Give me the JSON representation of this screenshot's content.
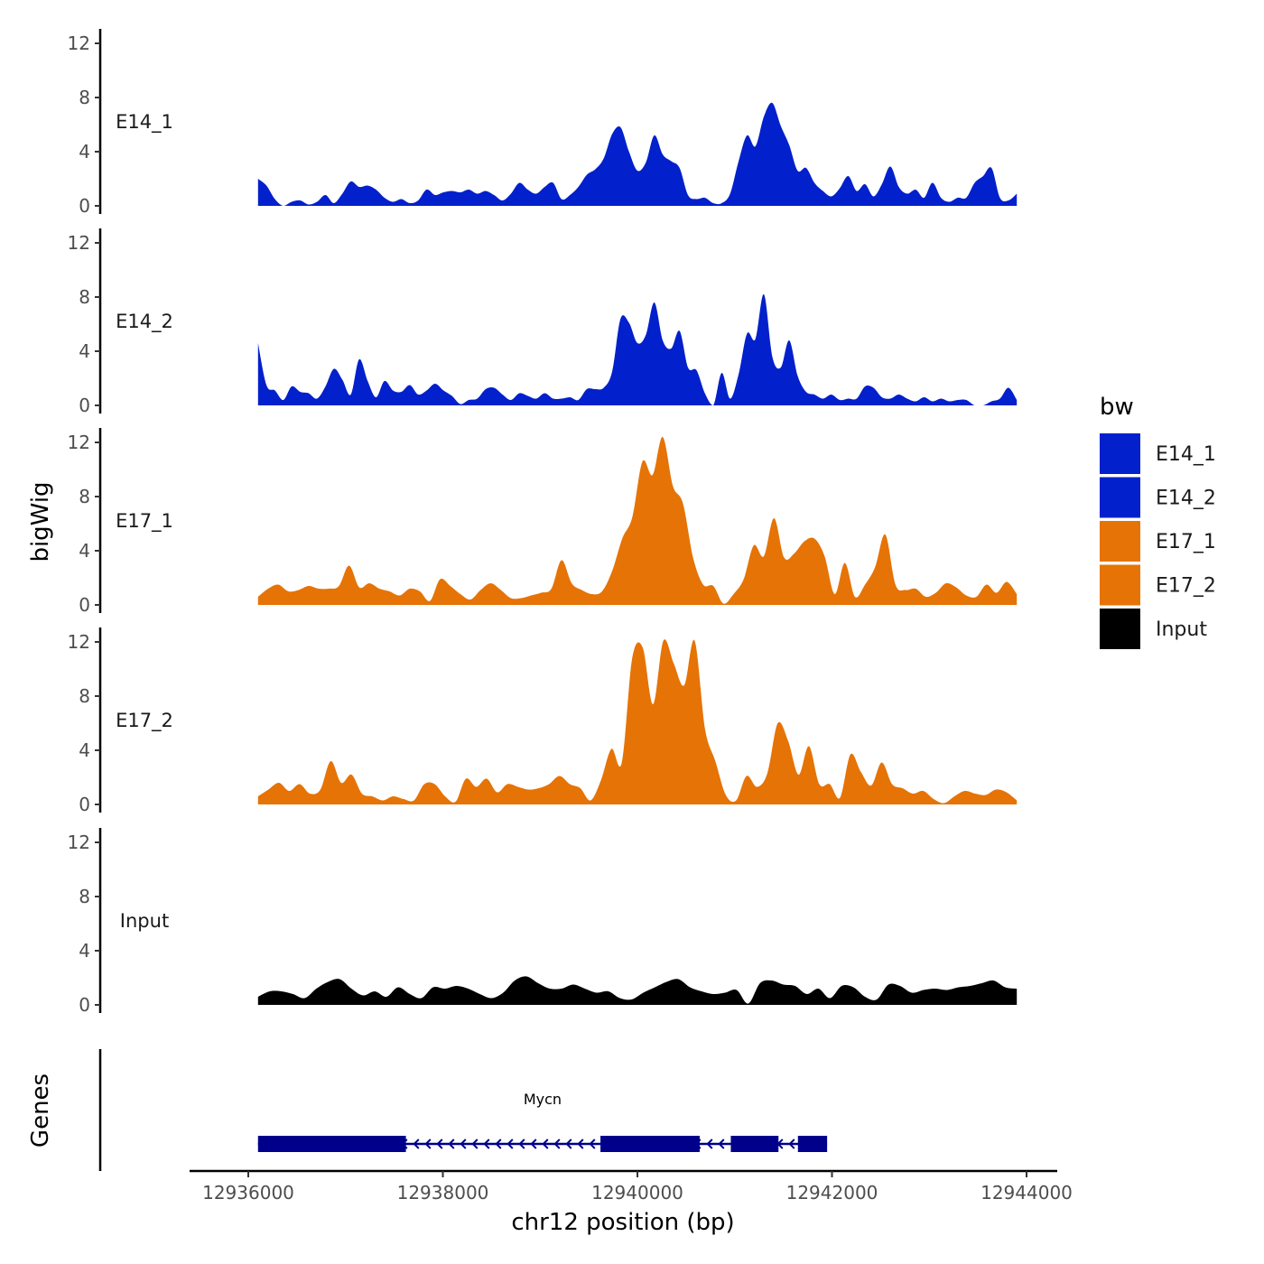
{
  "chart_data": {
    "type": "area",
    "title": "",
    "ylabel": "bigWig",
    "xlabel": "chr12 position (bp)",
    "xlim": [
      12935700,
      12944000
    ],
    "region": [
      12936100,
      12943900
    ],
    "x_ticks": [
      12936000,
      12938000,
      12940000,
      12942000,
      12944000
    ],
    "x_tick_labels": [
      "12936000",
      "12938000",
      "12940000",
      "12942000",
      "12944000"
    ],
    "y_ticks": [
      0,
      4,
      8,
      12
    ],
    "y_tick_labels": [
      "0",
      "4",
      "8",
      "12"
    ],
    "ylim": [
      0,
      13
    ],
    "legend": {
      "title": "bw",
      "position": "right",
      "entries": [
        {
          "label": "E14_1",
          "color": "#0220cc"
        },
        {
          "label": "E14_2",
          "color": "#0220cc"
        },
        {
          "label": "E17_1",
          "color": "#e67305"
        },
        {
          "label": "E17_2",
          "color": "#e67305"
        },
        {
          "label": "Input",
          "color": "#000000"
        }
      ]
    },
    "tracks": [
      {
        "name": "E14_1",
        "color": "#0220cc",
        "values": [
          2,
          1.5,
          0.5,
          0,
          0.3,
          0.4,
          0.1,
          0.3,
          0.8,
          0.2,
          0.9,
          1.8,
          1.4,
          1.5,
          1.2,
          0.6,
          0.3,
          0.5,
          0.2,
          0.4,
          1.2,
          0.8,
          1,
          1.1,
          1,
          1.2,
          0.9,
          1.1,
          0.8,
          0.4,
          0.9,
          1.7,
          1.2,
          0.9,
          1.4,
          1.7,
          0.5,
          0.8,
          1.4,
          2.3,
          2.7,
          3.5,
          5.3,
          5.8,
          4,
          2.6,
          3.2,
          5.2,
          3.8,
          3.3,
          2.8,
          0.8,
          0.5,
          0.6,
          0.2,
          0.2,
          0.9,
          3.3,
          5.2,
          4.4,
          6.6,
          7.6,
          5.9,
          4.5,
          2.6,
          2.8,
          1.7,
          1.1,
          0.7,
          1.3,
          2.2,
          1.1,
          1.6,
          0.7,
          1.6,
          2.9,
          1.4,
          0.9,
          1.2,
          0.6,
          1.7,
          0.6,
          0.3,
          0.6,
          0.6,
          1.7,
          2.2,
          2.8,
          0.6,
          0.4,
          0.9
        ]
      },
      {
        "name": "E14_2",
        "color": "#0220cc",
        "values": [
          4.6,
          1.5,
          1.1,
          0.4,
          1.4,
          1,
          0.9,
          0.5,
          1.4,
          2.7,
          1.9,
          0.8,
          3.4,
          1.8,
          0.6,
          1.8,
          1.1,
          1,
          1.5,
          0.8,
          1.1,
          1.6,
          1.1,
          0.7,
          0.1,
          0.4,
          0.5,
          1.2,
          1.3,
          0.8,
          0.4,
          0.9,
          0.7,
          0.5,
          0.9,
          0.5,
          0.5,
          0.6,
          0.4,
          1.2,
          1.2,
          1.3,
          2.5,
          6.4,
          6.1,
          4.6,
          5.2,
          7.6,
          4.8,
          4.2,
          5.5,
          2.8,
          2.6,
          0.9,
          0,
          2.4,
          0.5,
          2.3,
          5.3,
          4.9,
          8.2,
          3.6,
          2.8,
          4.8,
          2.2,
          1,
          0.8,
          0.5,
          0.8,
          0.4,
          0.5,
          0.5,
          1.4,
          1.3,
          0.6,
          0.5,
          0.8,
          0.5,
          0.3,
          0.6,
          0.3,
          0.5,
          0.3,
          0.4,
          0.4,
          0,
          0,
          0.3,
          0.5,
          1.3,
          0.4
        ]
      },
      {
        "name": "E17_1",
        "color": "#e67305",
        "values": [
          0.6,
          1.2,
          1.5,
          1,
          1.1,
          1.4,
          1.2,
          1.2,
          1.4,
          2.9,
          1.3,
          1.6,
          1.2,
          1,
          0.7,
          1.2,
          1,
          0.3,
          1.9,
          1.4,
          0.8,
          0.4,
          1.1,
          1.6,
          1.1,
          0.5,
          0.5,
          0.7,
          0.9,
          1.2,
          3.3,
          1.6,
          1.1,
          0.8,
          1,
          2.5,
          4.9,
          6.5,
          10.6,
          9.6,
          12.4,
          8.8,
          7.5,
          3.5,
          1.5,
          1.4,
          0.1,
          0.8,
          1.9,
          4.4,
          3.6,
          6.4,
          3.5,
          3.8,
          4.7,
          4.9,
          3.6,
          0.8,
          3.1,
          0.6,
          1.5,
          2.8,
          5.2,
          1.5,
          1.1,
          1.2,
          0.6,
          0.9,
          1.6,
          1.3,
          0.7,
          0.6,
          1.5,
          0.9,
          1.7,
          0.8
        ]
      },
      {
        "name": "E17_2",
        "color": "#e67305",
        "values": [
          0.6,
          1.1,
          1.6,
          1,
          1.5,
          0.8,
          1.1,
          3.2,
          1.6,
          2.2,
          0.8,
          0.6,
          0.3,
          0.6,
          0.4,
          0.3,
          1.5,
          1.5,
          0.6,
          0.2,
          1.9,
          1.3,
          1.9,
          0.9,
          1.5,
          1.3,
          1.1,
          1.2,
          1.5,
          2.1,
          1.5,
          1.2,
          0.3,
          1.8,
          4.1,
          3.1,
          10.8,
          11.6,
          7.4,
          12.1,
          10.4,
          8.8,
          12.1,
          5.6,
          3.2,
          0.7,
          0.3,
          2.1,
          1.3,
          2.3,
          6,
          4.7,
          2.2,
          4.3,
          1.5,
          1.5,
          0.5,
          3.7,
          2.4,
          1.4,
          3.1,
          1.5,
          1.2,
          0.8,
          1,
          0.4,
          0.1,
          0.6,
          1,
          0.8,
          0.7,
          1.1,
          0.9,
          0.3
        ]
      },
      {
        "name": "Input",
        "color": "#000000",
        "values": [
          0.6,
          1,
          1,
          0.8,
          0.5,
          1.2,
          1.7,
          1.9,
          1.2,
          0.7,
          1,
          0.6,
          1.3,
          0.8,
          0.5,
          1.3,
          1.2,
          1.4,
          1.2,
          0.8,
          0.5,
          0.9,
          1.8,
          2.1,
          1.6,
          1.2,
          1.2,
          1.5,
          1.2,
          0.9,
          1,
          0.5,
          0.4,
          0.9,
          1.3,
          1.7,
          1.9,
          1.3,
          1,
          0.8,
          0.9,
          1.1,
          0.1,
          1.6,
          1.8,
          1.5,
          1.4,
          0.8,
          1.2,
          0.5,
          1.4,
          1.3,
          0.6,
          0.4,
          1.5,
          1.4,
          0.9,
          1.1,
          1.2,
          1.1,
          1.3,
          1.4,
          1.6,
          1.8,
          1.3,
          1.2
        ]
      }
    ],
    "gene_track": {
      "label": "Genes",
      "gene": "Mycn",
      "color": "#00008b",
      "strand": "-",
      "transcript": [
        12936100,
        12941950
      ],
      "exons": [
        [
          12936100,
          12937620
        ],
        [
          12939620,
          12940640
        ],
        [
          12940960,
          12941450
        ],
        [
          12941650,
          12941950
        ]
      ]
    }
  }
}
